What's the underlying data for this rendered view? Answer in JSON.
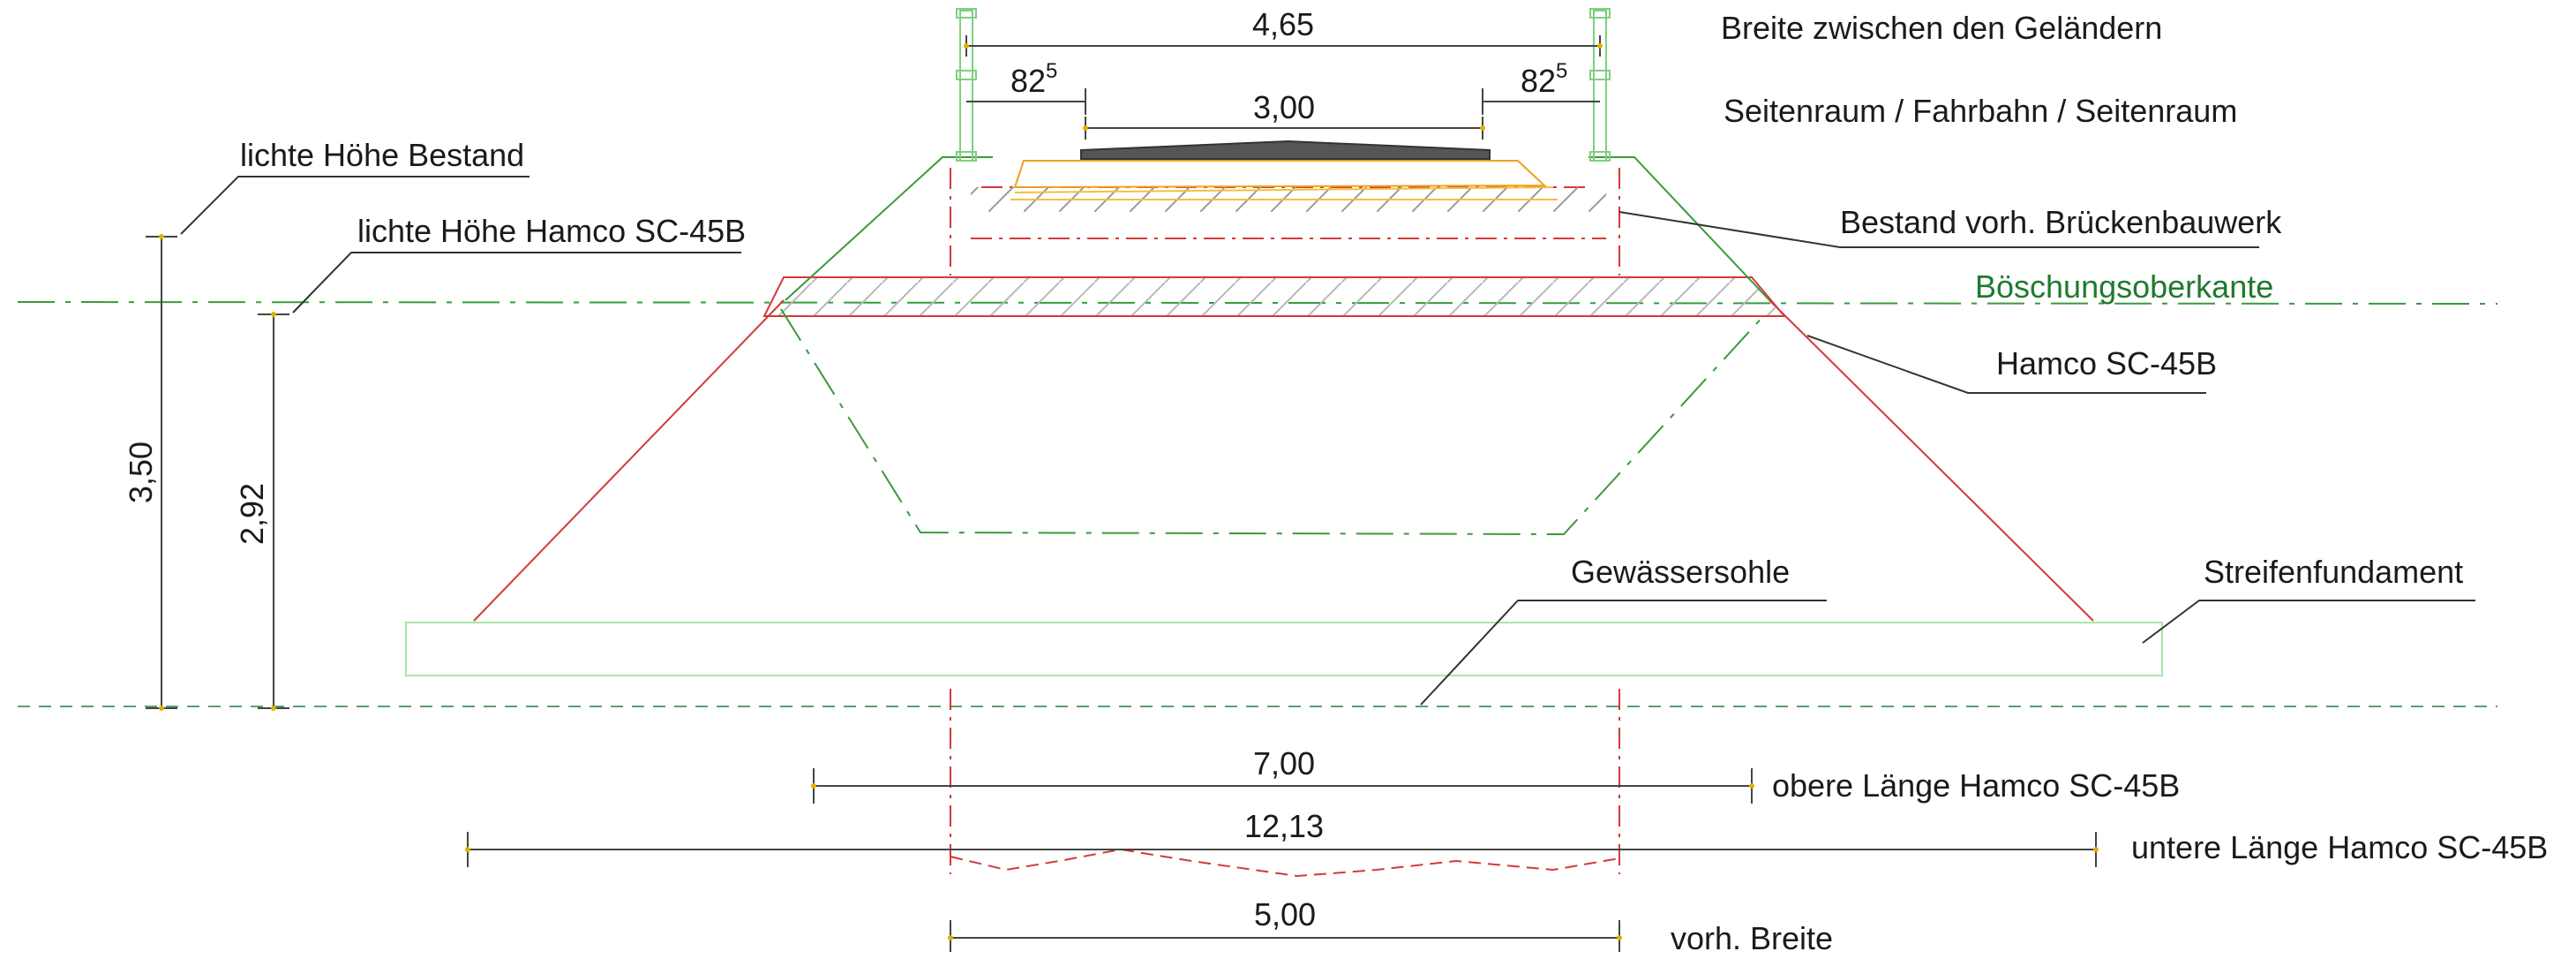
{
  "labels": {
    "breite_gelaender": "Breite zwischen den Geländern",
    "seitenraum": "Seitenraum / Fahrbahn / Seitenraum",
    "lichte_hoehe_bestand": "lichte Höhe Bestand",
    "lichte_hoehe_hamco": "lichte Höhe Hamco SC-45B",
    "bestand_bauwerk": "Bestand vorh. Brückenbauwerk",
    "boeschungsoberkante": "Böschungsoberkante",
    "hamco": "Hamco SC-45B",
    "gewaessersohle": "Gewässersohle",
    "streifenfundament": "Streifenfundament",
    "obere_laenge": "obere Länge Hamco SC-45B",
    "untere_laenge": "untere Länge Hamco SC-45B",
    "vorh_breite": "vorh. Breite"
  },
  "dimensions": {
    "width_railings": "4,65",
    "side_left_main": "82",
    "side_left_sup": "5",
    "side_right_main": "82",
    "side_right_sup": "5",
    "carriageway": "3,00",
    "height_bestand": "3,50",
    "height_hamco": "2,92",
    "upper_length": "7,00",
    "lower_length": "12,13",
    "existing_width": "5,00"
  },
  "colors": {
    "ink": "#1a1a1a",
    "dim_line": "#444444",
    "green_line": "#3a9a3a",
    "label_green": "#1f7a2e",
    "red_line": "#d23a3a",
    "orange": "#f0a020",
    "yellow_tick": "#e0b000",
    "railing": "#7fd07f",
    "asphalt": "#555555",
    "foundation": "#a8e6a8",
    "water_line": "#5aa070"
  }
}
